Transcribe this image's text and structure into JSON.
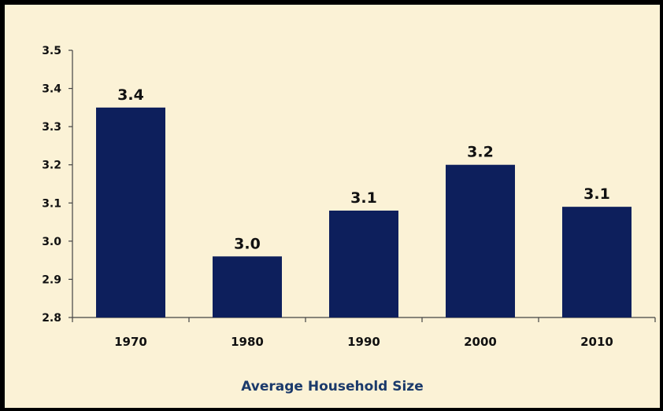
{
  "chart_data": {
    "type": "bar",
    "title": "Average Household Size",
    "xlabel": "",
    "ylabel": "",
    "categories": [
      "1970",
      "1980",
      "1990",
      "2000",
      "2010"
    ],
    "values": [
      3.35,
      2.96,
      3.08,
      3.2,
      3.09
    ],
    "value_labels": [
      "3.4",
      "3.0",
      "3.1",
      "3.2",
      "3.1"
    ],
    "ylim": [
      2.8,
      3.5
    ],
    "yticks": [
      "2.8",
      "2.9",
      "3.0",
      "3.1",
      "3.2",
      "3.3",
      "3.4",
      "3.5"
    ],
    "grid": false,
    "legend": "none"
  },
  "colors": {
    "bar": "#0d1f5c",
    "background": "#fbf2d6",
    "title": "#1b3a6b",
    "frame": "#000000"
  }
}
